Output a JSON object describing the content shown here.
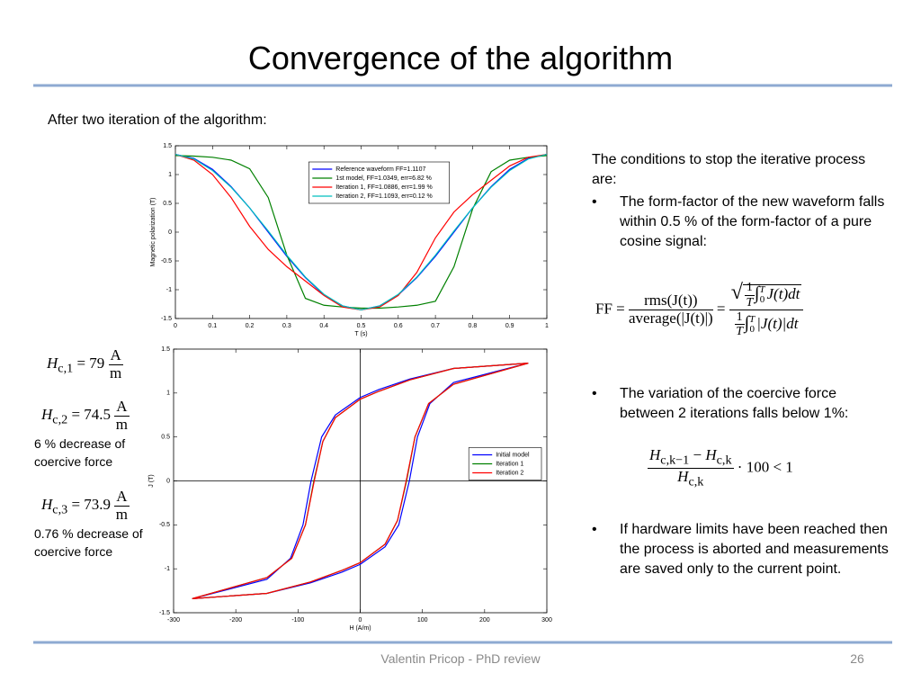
{
  "title": "Convergence of the algorithm",
  "intro": "After two iteration of the algorithm:",
  "chart_data": [
    {
      "type": "line",
      "ylabel": "Magnetic polarization (T)",
      "xlabel": "T (s)",
      "x": [
        0,
        0.05,
        0.1,
        0.15,
        0.2,
        0.25,
        0.3,
        0.35,
        0.4,
        0.45,
        0.5,
        0.55,
        0.6,
        0.65,
        0.7,
        0.75,
        0.8,
        0.85,
        0.9,
        0.95,
        1
      ],
      "xlim": [
        0,
        1
      ],
      "xticks": [
        0,
        0.1,
        0.2,
        0.3,
        0.4,
        0.5,
        0.6,
        0.7,
        0.8,
        0.9,
        1
      ],
      "ylim": [
        -1.5,
        1.5
      ],
      "yticks": [
        -1.5,
        -1,
        -0.5,
        0,
        0.5,
        1,
        1.5
      ],
      "legend": "upper center",
      "series": [
        {
          "name": "Reference waveform FF=1.1107",
          "color": "#0000ff",
          "values": [
            1.35,
            1.28,
            1.09,
            0.79,
            0.42,
            0,
            -0.42,
            -0.79,
            -1.09,
            -1.28,
            -1.35,
            -1.28,
            -1.09,
            -0.79,
            -0.42,
            0,
            0.42,
            0.79,
            1.09,
            1.28,
            1.35
          ]
        },
        {
          "name": "1st model, FF=1.0349, err=6.82 %",
          "color": "#008000",
          "values": [
            1.33,
            1.32,
            1.3,
            1.25,
            1.1,
            0.6,
            -0.4,
            -1.15,
            -1.27,
            -1.3,
            -1.32,
            -1.32,
            -1.3,
            -1.27,
            -1.2,
            -0.6,
            0.4,
            1.05,
            1.25,
            1.3,
            1.33
          ]
        },
        {
          "name": "Iteration 1, FF=1.0886, err=1.99 %",
          "color": "#ff0000",
          "values": [
            1.35,
            1.25,
            1.0,
            0.6,
            0.1,
            -0.3,
            -0.6,
            -0.85,
            -1.1,
            -1.3,
            -1.35,
            -1.3,
            -1.1,
            -0.7,
            -0.1,
            0.35,
            0.65,
            0.9,
            1.15,
            1.3,
            1.35
          ]
        },
        {
          "name": "Iteration 2, FF=1.1093, err=0.12 %",
          "color": "#00bfbf",
          "values": [
            1.35,
            1.27,
            1.07,
            0.78,
            0.42,
            0.02,
            -0.4,
            -0.78,
            -1.08,
            -1.28,
            -1.35,
            -1.28,
            -1.08,
            -0.78,
            -0.4,
            0.02,
            0.42,
            0.78,
            1.07,
            1.27,
            1.35
          ]
        }
      ]
    },
    {
      "type": "line",
      "ylabel": "J (T)",
      "xlabel": "H (A/m)",
      "zero_lines": true,
      "xlim": [
        -300,
        300
      ],
      "xticks": [
        -300,
        -200,
        -100,
        0,
        100,
        200,
        300
      ],
      "ylim": [
        -1.5,
        1.5
      ],
      "yticks": [
        -1.5,
        -1,
        -0.5,
        0,
        0.5,
        1,
        1.5
      ],
      "legend": "center right",
      "series": [
        {
          "name": "Initial model",
          "color": "#0000ff",
          "x": [
            270,
            150,
            80,
            30,
            0,
            -40,
            -62,
            -79,
            -92,
            -112,
            -150,
            -270,
            -270,
            -150,
            -80,
            -30,
            0,
            40,
            62,
            79,
            92,
            112,
            150,
            270
          ],
          "values": [
            1.34,
            1.28,
            1.16,
            1.04,
            0.95,
            0.75,
            0.5,
            0,
            -0.5,
            -0.88,
            -1.12,
            -1.34,
            -1.34,
            -1.28,
            -1.16,
            -1.04,
            -0.95,
            -0.75,
            -0.5,
            0,
            0.5,
            0.88,
            1.12,
            1.34
          ]
        },
        {
          "name": "Iteration 1",
          "color": "#008000",
          "x": [
            270,
            150,
            80,
            30,
            0,
            -40,
            -60,
            -74.5,
            -88,
            -110,
            -150,
            -270,
            -270,
            -150,
            -80,
            -30,
            0,
            40,
            60,
            74.5,
            88,
            110,
            150,
            270
          ],
          "values": [
            1.34,
            1.28,
            1.15,
            1.02,
            0.93,
            0.72,
            0.45,
            0,
            -0.5,
            -0.88,
            -1.1,
            -1.34,
            -1.34,
            -1.28,
            -1.15,
            -1.02,
            -0.93,
            -0.72,
            -0.45,
            0,
            0.5,
            0.88,
            1.1,
            1.34
          ]
        },
        {
          "name": "Iteration 2",
          "color": "#ff0000",
          "x": [
            270,
            150,
            80,
            30,
            0,
            -40,
            -60,
            -73.9,
            -88,
            -110,
            -150,
            -270,
            -270,
            -150,
            -80,
            -30,
            0,
            40,
            60,
            73.9,
            88,
            110,
            150,
            270
          ],
          "values": [
            1.34,
            1.28,
            1.15,
            1.02,
            0.93,
            0.72,
            0.45,
            0,
            -0.5,
            -0.88,
            -1.1,
            -1.34,
            -1.34,
            -1.28,
            -1.15,
            -1.02,
            -0.93,
            -0.72,
            -0.45,
            0,
            0.5,
            0.88,
            1.1,
            1.34
          ]
        }
      ]
    }
  ],
  "left_notes": [
    {
      "symbol": "H",
      "subscript": "c,1",
      "equals": "= 79",
      "unit_num": "A",
      "unit_den": "m"
    },
    {
      "symbol": "H",
      "subscript": "c,2",
      "equals": "= 74.5",
      "unit_num": "A",
      "unit_den": "m",
      "note": "6 % decrease of coercive force"
    },
    {
      "symbol": "H",
      "subscript": "c,3",
      "equals": "= 73.9",
      "unit_num": "A",
      "unit_den": "m",
      "note": "0.76 % decrease of coercive force"
    }
  ],
  "right": {
    "intro": "The conditions to stop the iterative process are:",
    "bullet_symbol": "•",
    "bullets": [
      "The form-factor of the new waveform falls within 0.5 % of the form-factor of a pure cosine signal:",
      "The variation of the coercive force between 2 iterations falls below 1%:",
      "If hardware limits have been reached then the process is aborted and measurements are saved only to the current point."
    ],
    "ff_formula": {
      "lhs": "FF =",
      "num1": "rms(J(t))",
      "den1": "average(|J(t)|)",
      "eq": "=",
      "sqrt": "√",
      "coef_num": "1",
      "coef_den": "T",
      "integral": "∫",
      "upper": "T",
      "lower": "0",
      "integrand_num": "J(t)dt",
      "integrand_den": "|J(t)|dt"
    },
    "hc_formula": {
      "symbol": "H",
      "sub_prev": "c,k−1",
      "minus": "−",
      "sub_cur": "c,k",
      "sub_den": "c,k",
      "tail": "· 100 < 1"
    }
  },
  "footer": {
    "text": "Valentin Pricop - PhD review",
    "page": "26"
  }
}
